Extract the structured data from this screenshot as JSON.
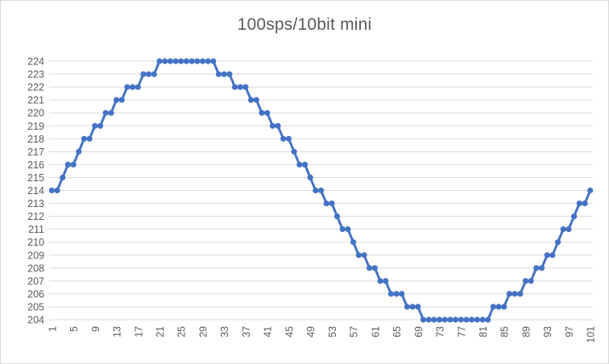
{
  "window": {
    "background_color": "#ffffff",
    "frame_border_color": "#d9d9d9"
  },
  "chart_data": {
    "type": "line",
    "title": "100sps/10bit mini",
    "legend": "none",
    "grid": "horizontal",
    "series_name": "100sps/10bit mini",
    "series_color": "#4472c4",
    "grid_color": "#d9d9d9",
    "text_color": "#595959",
    "marker": "circle",
    "xlabel": "",
    "ylabel": "",
    "ylim": [
      204,
      224
    ],
    "y_tick_step": 1,
    "x_tick_rotation": -90,
    "x_tick_labels": [
      "1",
      "5",
      "9",
      "13",
      "17",
      "21",
      "25",
      "29",
      "33",
      "37",
      "41",
      "45",
      "49",
      "53",
      "57",
      "61",
      "65",
      "69",
      "73",
      "77",
      "81",
      "85",
      "89",
      "93",
      "97",
      "101"
    ],
    "y_tick_labels": [
      "204",
      "205",
      "206",
      "207",
      "208",
      "209",
      "210",
      "211",
      "212",
      "213",
      "214",
      "215",
      "216",
      "217",
      "218",
      "219",
      "220",
      "221",
      "222",
      "223",
      "224"
    ],
    "x": [
      1,
      2,
      3,
      4,
      5,
      6,
      7,
      8,
      9,
      10,
      11,
      12,
      13,
      14,
      15,
      16,
      17,
      18,
      19,
      20,
      21,
      22,
      23,
      24,
      25,
      26,
      27,
      28,
      29,
      30,
      31,
      32,
      33,
      34,
      35,
      36,
      37,
      38,
      39,
      40,
      41,
      42,
      43,
      44,
      45,
      46,
      47,
      48,
      49,
      50,
      51,
      52,
      53,
      54,
      55,
      56,
      57,
      58,
      59,
      60,
      61,
      62,
      63,
      64,
      65,
      66,
      67,
      68,
      69,
      70,
      71,
      72,
      73,
      74,
      75,
      76,
      77,
      78,
      79,
      80,
      81,
      82,
      83,
      84,
      85,
      86,
      87,
      88,
      89,
      90,
      91,
      92,
      93,
      94,
      95,
      96,
      97,
      98,
      99,
      100,
      101
    ],
    "values": [
      214,
      214,
      215,
      216,
      216,
      217,
      218,
      218,
      219,
      219,
      220,
      220,
      221,
      221,
      222,
      222,
      222,
      223,
      223,
      223,
      224,
      224,
      224,
      224,
      224,
      224,
      224,
      224,
      224,
      224,
      224,
      223,
      223,
      223,
      222,
      222,
      222,
      221,
      221,
      220,
      220,
      219,
      219,
      218,
      218,
      217,
      216,
      216,
      215,
      214,
      214,
      213,
      213,
      212,
      211,
      211,
      210,
      209,
      209,
      208,
      208,
      207,
      207,
      206,
      206,
      206,
      205,
      205,
      205,
      204,
      204,
      204,
      204,
      204,
      204,
      204,
      204,
      204,
      204,
      204,
      204,
      204,
      205,
      205,
      205,
      206,
      206,
      206,
      207,
      207,
      208,
      208,
      209,
      209,
      210,
      211,
      211,
      212,
      213,
      213,
      214
    ]
  }
}
